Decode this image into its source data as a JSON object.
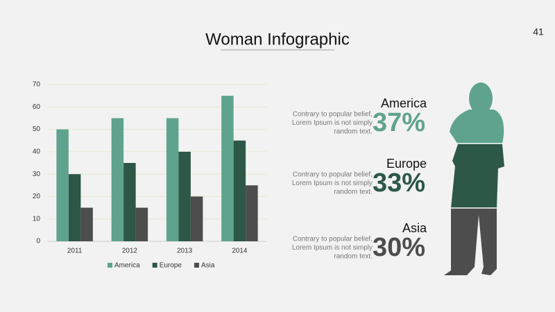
{
  "slide_title": "Woman Infographic",
  "page_number": "41",
  "chart_data": {
    "type": "bar",
    "categories": [
      "2011",
      "2012",
      "2013",
      "2014"
    ],
    "series": [
      {
        "name": "America",
        "color": "#5fa38e",
        "values": [
          50,
          55,
          55,
          65
        ]
      },
      {
        "name": "Europe",
        "color": "#2d5747",
        "values": [
          30,
          35,
          40,
          45
        ]
      },
      {
        "name": "Asia",
        "color": "#4d4d4d",
        "values": [
          15,
          15,
          20,
          25
        ]
      }
    ],
    "ylim": [
      0,
      70
    ],
    "yticks": [
      0,
      10,
      20,
      30,
      40,
      50,
      60,
      70
    ],
    "grid": true,
    "legend": "bottom"
  },
  "infographic": [
    {
      "name": "America",
      "percent": "37%",
      "color": "#5fa38e",
      "text": [
        "Contrary to popular belief,",
        "Lorem Ipsum is not simply",
        "random text."
      ]
    },
    {
      "name": "Europe",
      "percent": "33%",
      "color": "#2d5747",
      "text": [
        "Contrary to popular belief,",
        "Lorem Ipsum is not simply",
        "random text."
      ]
    },
    {
      "name": "Asia",
      "percent": "30%",
      "color": "#4d4d4d",
      "text": [
        "Contrary to popular belief,",
        "Lorem Ipsum is not simply",
        "random text."
      ]
    }
  ]
}
